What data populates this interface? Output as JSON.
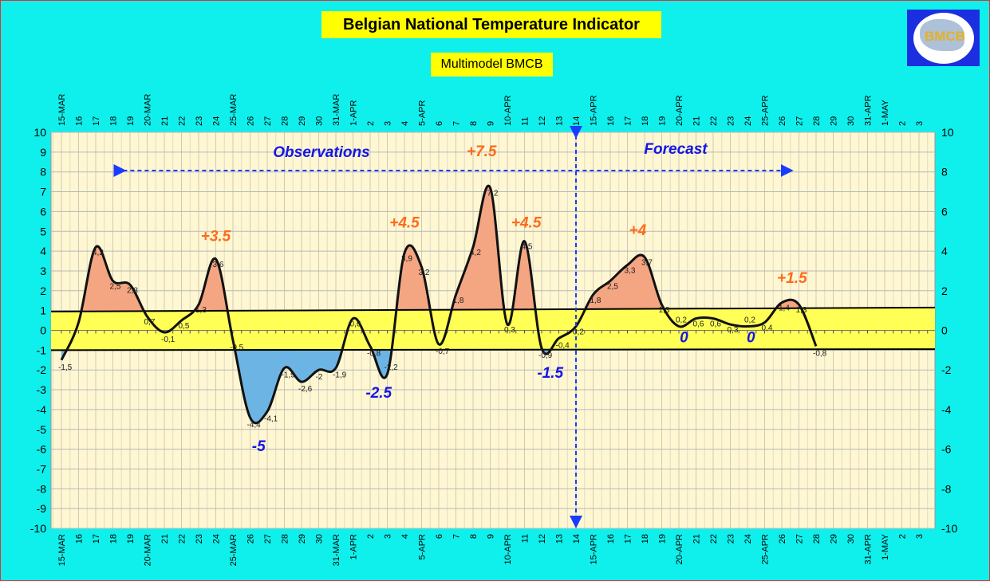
{
  "header": {
    "title": "Belgian National Temperature Indicator",
    "subtitle": "Multimodel BMCB",
    "logo_text": "BMCB"
  },
  "chart_data": {
    "type": "line",
    "title": "Belgian National Temperature Indicator",
    "subtitle": "Multimodel BMCB",
    "xlabel": "",
    "ylabel": "",
    "ylim": [
      -10,
      10
    ],
    "y_ticks_left": [
      10,
      9,
      8,
      7,
      6,
      5,
      4,
      3,
      2,
      1,
      0,
      -1,
      -2,
      -3,
      -4,
      -5,
      -6,
      -7,
      -8,
      -9,
      -10
    ],
    "y_ticks_right": [
      10,
      8,
      6,
      4,
      2,
      0,
      -2,
      -4,
      -6,
      -8,
      -10
    ],
    "x_tick_labels": [
      "15-MAR",
      "16",
      "17",
      "18",
      "19",
      "20-MAR",
      "21",
      "22",
      "23",
      "24",
      "25-MAR",
      "26",
      "27",
      "28",
      "29",
      "30",
      "31-MAR",
      "1-APR",
      "2",
      "3",
      "4",
      "5-APR",
      "6",
      "7",
      "8",
      "9",
      "10-APR",
      "11",
      "12",
      "13",
      "14",
      "15-APR",
      "16",
      "17",
      "18",
      "19",
      "20-APR",
      "21",
      "22",
      "23",
      "24",
      "25-APR",
      "26",
      "27",
      "28",
      "29",
      "30",
      "31-APR",
      "1-MAY",
      "2",
      "3"
    ],
    "grid": true,
    "series": [
      {
        "name": "Temperature anomaly",
        "values": [
          -1.5,
          0.4,
          4.2,
          2.5,
          2.3,
          0.7,
          -0.1,
          0.5,
          1.3,
          3.6,
          -0.5,
          -4.4,
          -4.1,
          -1.9,
          -2.6,
          -2,
          -1.9,
          0.6,
          -0.8,
          -2.2,
          3.9,
          3.2,
          -0.7,
          1.8,
          4.2,
          7.2,
          0.3,
          4.5,
          -0.9,
          -0.4,
          0.2,
          1.8,
          2.5,
          3.3,
          3.7,
          1.3,
          0.2,
          0.6,
          0.6,
          0.3,
          0.2,
          0.4,
          1.4,
          1.3,
          -0.8
        ]
      }
    ],
    "unlabeled_indices": [
      1
    ],
    "band": {
      "upper": [
        0.95,
        1.15
      ],
      "lower": [
        -1,
        -0.95
      ]
    },
    "section_labels": {
      "observations": "Observations",
      "forecast": "Forecast"
    },
    "forecast_start_index": 30,
    "annotations": [
      {
        "text": "+3.5",
        "x": 9,
        "y": 4.5,
        "kind": "warm"
      },
      {
        "text": "+4.5",
        "x": 20,
        "y": 5.2,
        "kind": "warm"
      },
      {
        "text": "+7.5",
        "x": 24.5,
        "y": 8.8,
        "kind": "warm"
      },
      {
        "text": "+4.5",
        "x": 27.1,
        "y": 5.2,
        "kind": "warm"
      },
      {
        "text": "+4",
        "x": 33.6,
        "y": 4.8,
        "kind": "warm"
      },
      {
        "text": "+1.5",
        "x": 42.6,
        "y": 2.4,
        "kind": "warm"
      },
      {
        "text": "-5",
        "x": 11.5,
        "y": -6.1,
        "kind": "cold"
      },
      {
        "text": "-2.5",
        "x": 18.5,
        "y": -3.4,
        "kind": "cold"
      },
      {
        "text": "-1.5",
        "x": 28.5,
        "y": -2.4,
        "kind": "cold"
      },
      {
        "text": "0",
        "x": 36.3,
        "y": -0.6,
        "kind": "cold"
      },
      {
        "text": "0",
        "x": 40.2,
        "y": -0.6,
        "kind": "cold"
      }
    ],
    "colors": {
      "warm": "#f4a582",
      "cold": "#6cb4e4",
      "band": "#ffff55",
      "plot_bg": "#fff7d2",
      "warm_text": "#ff6a1a",
      "cold_text": "#1515e6",
      "arrow": "#1a3cff"
    }
  }
}
